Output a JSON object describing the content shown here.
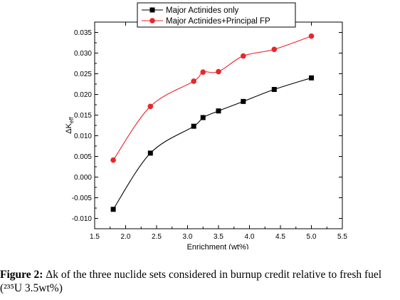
{
  "chart_data": {
    "type": "line",
    "xlabel": "Enrichment (wt%)",
    "ylabel": "ΔK",
    "ylabel_sub": "eff",
    "xlim": [
      1.5,
      5.5
    ],
    "ylim": [
      -0.0125,
      0.0375
    ],
    "xticks": [
      "1.5",
      "2.0",
      "2.5",
      "3.0",
      "3.5",
      "4.0",
      "4.5",
      "5.0",
      "5.5"
    ],
    "yticks": [
      "0.035",
      "0.030",
      "0.025",
      "0.020",
      "0.015",
      "0.010",
      "0.005",
      "0.000",
      "-0.005",
      "-0.010"
    ],
    "legend_position": "top-center",
    "series": [
      {
        "name": "Major Actinides only",
        "color": "#000000",
        "marker": "square",
        "x": [
          1.8,
          2.4,
          3.1,
          3.25,
          3.5,
          3.9,
          4.4,
          5.0
        ],
        "y": [
          -0.0078,
          0.0058,
          0.0123,
          0.0144,
          0.016,
          0.0183,
          0.0212,
          0.024
        ]
      },
      {
        "name": "Major Actinides+Principal FP",
        "color": "#e8262b",
        "marker": "circle",
        "x": [
          1.8,
          2.4,
          3.1,
          3.25,
          3.5,
          3.9,
          4.4,
          5.0
        ],
        "y": [
          0.0041,
          0.0171,
          0.0232,
          0.0254,
          0.0255,
          0.0293,
          0.0309,
          0.0341
        ]
      }
    ]
  },
  "caption": {
    "label": "Figure 2:",
    "text": " Δk of the three nuclide sets considered in burnup credit relative to fresh fuel (²³⁵U 3.5wt%)"
  }
}
